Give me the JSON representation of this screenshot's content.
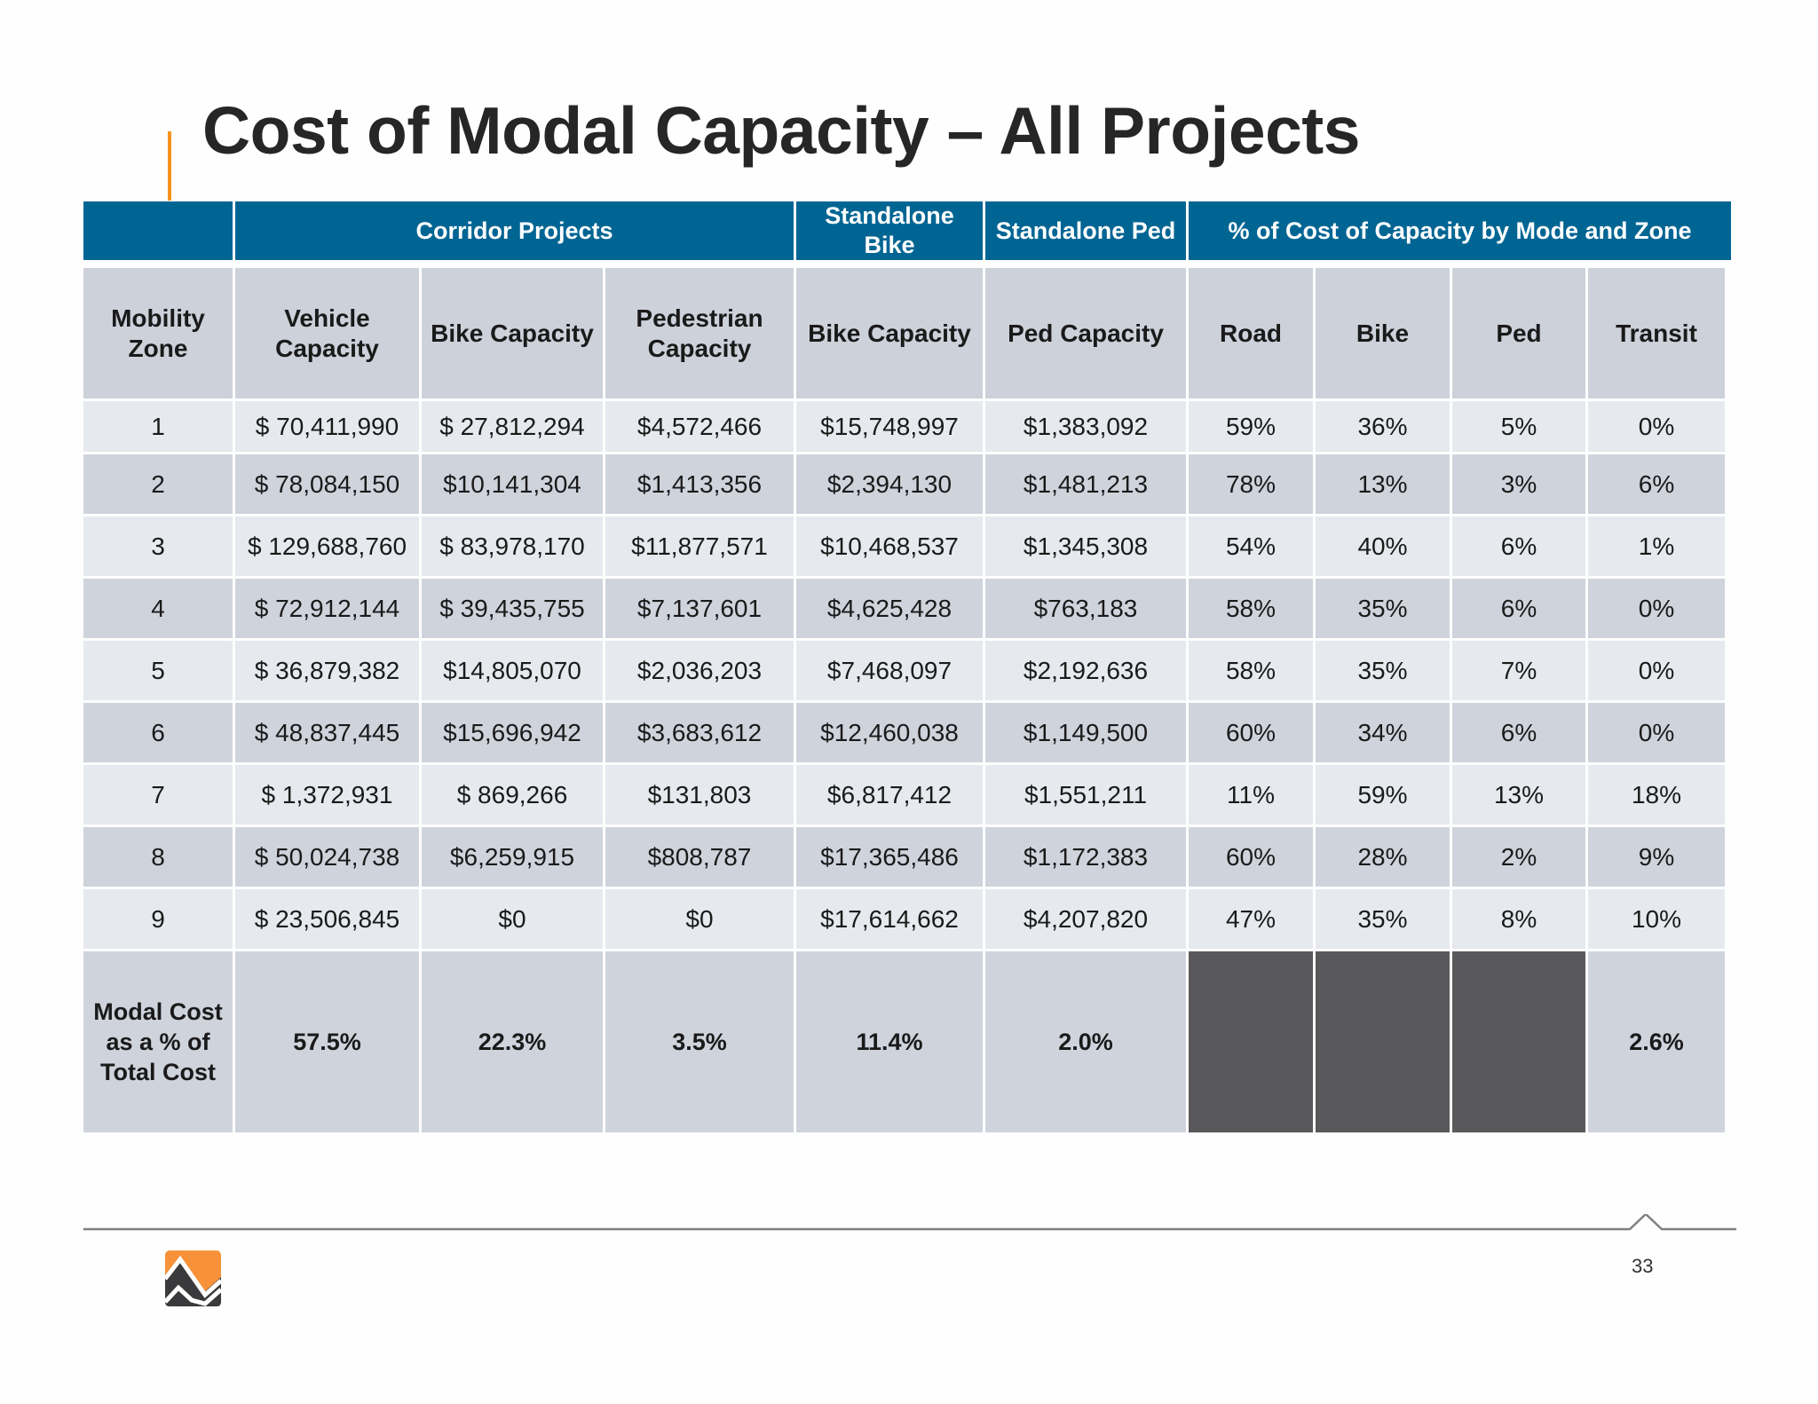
{
  "title": "Cost of Modal Capacity – All Projects",
  "group_headers": [
    "",
    "Corridor Projects",
    "Standalone Bike",
    "Standalone Ped",
    "% of Cost of Capacity by Mode and Zone"
  ],
  "columns": [
    "Mobility Zone",
    "Vehicle Capacity",
    "Bike Capacity",
    "Pedestrian Capacity",
    "Bike Capacity",
    "Ped Capacity",
    "Road",
    "Bike",
    "Ped",
    "Transit"
  ],
  "rows": [
    [
      "1",
      "$ 70,411,990",
      "$ 27,812,294",
      "$4,572,466",
      "$15,748,997",
      "$1,383,092",
      "59%",
      "36%",
      "5%",
      "0%"
    ],
    [
      "2",
      "$ 78,084,150",
      "$10,141,304",
      "$1,413,356",
      "$2,394,130",
      "$1,481,213",
      "78%",
      "13%",
      "3%",
      "6%"
    ],
    [
      "3",
      "$ 129,688,760",
      "$ 83,978,170",
      "$11,877,571",
      "$10,468,537",
      "$1,345,308",
      "54%",
      "40%",
      "6%",
      "1%"
    ],
    [
      "4",
      "$ 72,912,144",
      "$ 39,435,755",
      "$7,137,601",
      "$4,625,428",
      "$763,183",
      "58%",
      "35%",
      "6%",
      "0%"
    ],
    [
      "5",
      "$ 36,879,382",
      "$14,805,070",
      "$2,036,203",
      "$7,468,097",
      "$2,192,636",
      "58%",
      "35%",
      "7%",
      "0%"
    ],
    [
      "6",
      "$ 48,837,445",
      "$15,696,942",
      "$3,683,612",
      "$12,460,038",
      "$1,149,500",
      "60%",
      "34%",
      "6%",
      "0%"
    ],
    [
      "7",
      "$ 1,372,931",
      "$ 869,266",
      "$131,803",
      "$6,817,412",
      "$1,551,211",
      "11%",
      "59%",
      "13%",
      "18%"
    ],
    [
      "8",
      "$ 50,024,738",
      "$6,259,915",
      "$808,787",
      "$17,365,486",
      "$1,172,383",
      "60%",
      "28%",
      "2%",
      "9%"
    ],
    [
      "9",
      "$ 23,506,845",
      "$0",
      "$0",
      "$17,614,662",
      "$4,207,820",
      "47%",
      "35%",
      "8%",
      "10%"
    ]
  ],
  "footer": [
    "Modal Cost as a % of Total Cost",
    "57.5%",
    "22.3%",
    "3.5%",
    "11.4%",
    "2.0%",
    "",
    "",
    "",
    "2.6%"
  ],
  "page_number": "33",
  "colors": {
    "header_blue": "#006593",
    "accent_orange": "#f7931e",
    "row_light": "#e6e9ee",
    "row_dark": "#cfd3dc",
    "blank_cell": "#59585b"
  }
}
